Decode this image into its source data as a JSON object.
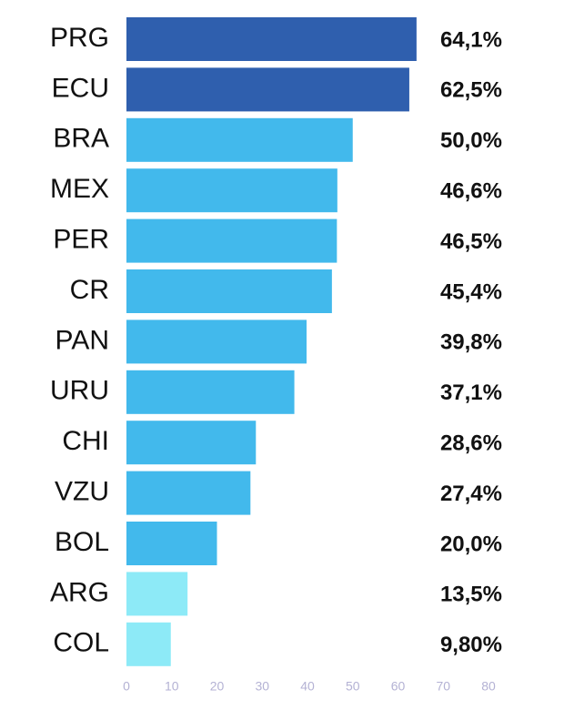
{
  "chart_data": {
    "type": "barh",
    "categories": [
      "PRG",
      "ECU",
      "BRA",
      "MEX",
      "PER",
      "CR",
      "PAN",
      "URU",
      "CHI",
      "VZU",
      "BOL",
      "ARG",
      "COL"
    ],
    "values": [
      64.1,
      62.5,
      50.0,
      46.6,
      46.5,
      45.4,
      39.8,
      37.1,
      28.6,
      27.4,
      20.0,
      13.5,
      9.8
    ],
    "value_labels": [
      "64,1%",
      "62,5%",
      "50,0%",
      "46,6%",
      "46,5%",
      "45,4%",
      "39,8%",
      "37,1%",
      "28,6%",
      "27,4%",
      "20,0%",
      "13,5%",
      "9,80%"
    ],
    "colors": [
      "#2f5fae",
      "#2f5fae",
      "#42b9ec",
      "#42b9ec",
      "#42b9ec",
      "#42b9ec",
      "#42b9ec",
      "#42b9ec",
      "#42b9ec",
      "#42b9ec",
      "#42b9ec",
      "#8deaf7",
      "#8deaf7"
    ],
    "xlim": [
      0,
      80
    ],
    "xticks": [
      0,
      10,
      20,
      30,
      40,
      50,
      60,
      70,
      80
    ]
  }
}
